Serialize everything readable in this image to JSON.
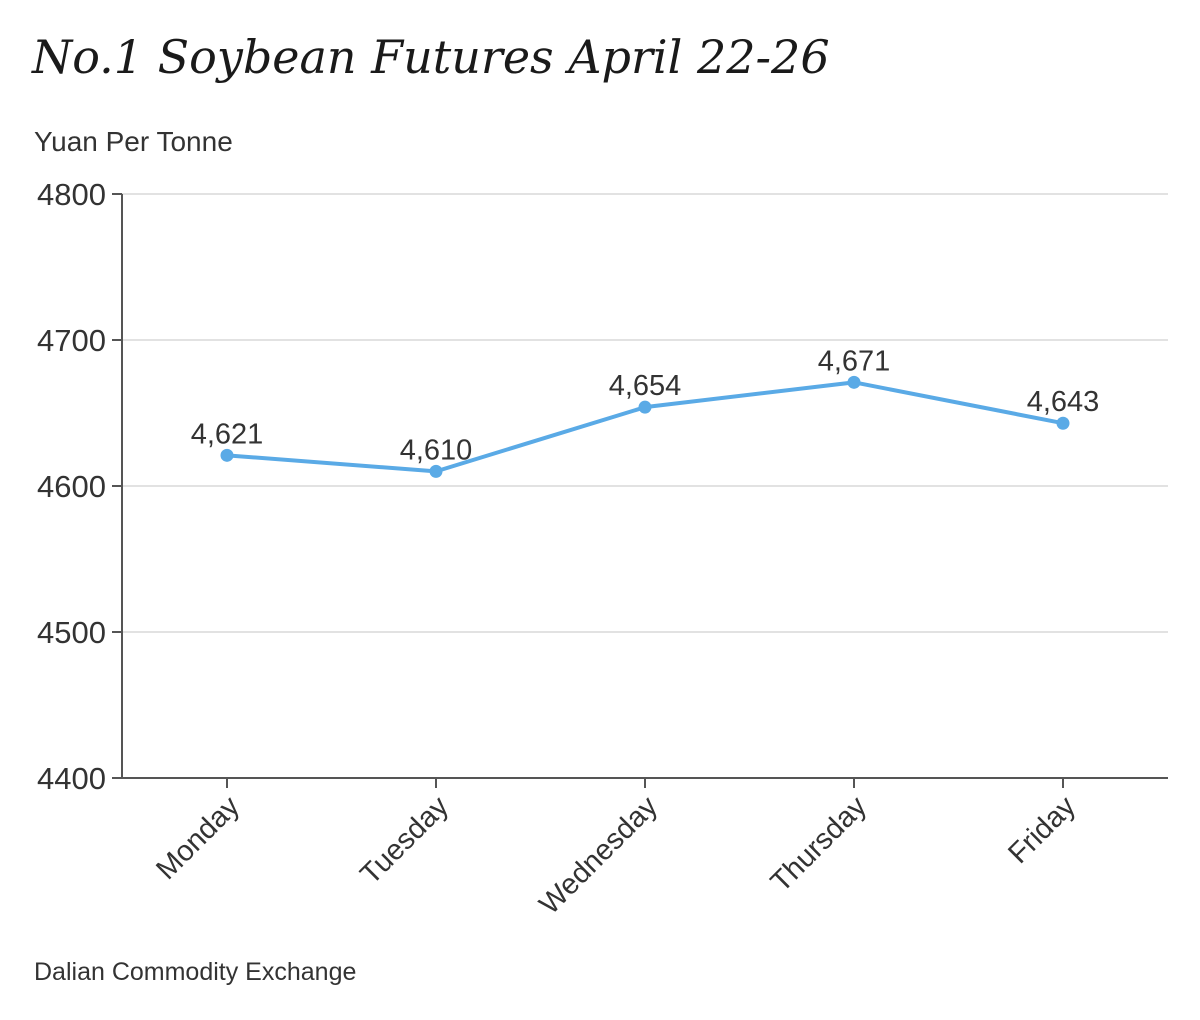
{
  "header": {
    "title": "No.1 Soybean Futures April 22-26",
    "unit": "Yuan Per Tonne"
  },
  "footer": {
    "source": "Dalian Commodity Exchange"
  },
  "chart_data": {
    "type": "line",
    "categories": [
      "Monday",
      "Tuesday",
      "Wednesday",
      "Thursday",
      "Friday"
    ],
    "series": [
      {
        "values": [
          4621,
          4610,
          4654,
          4671,
          4643
        ]
      }
    ],
    "data_labels": [
      "4,621",
      "4,610",
      "4,654",
      "4,671",
      "4,643"
    ],
    "title": "No.1 Soybean Futures April 22-26",
    "xlabel": "",
    "ylabel": "Yuan Per Tonne",
    "ylim": [
      4400,
      4800
    ],
    "yticks": [
      4400,
      4500,
      4600,
      4700,
      4800
    ],
    "grid": true,
    "colors": {
      "line": "#5aaae6",
      "grid": "#d9d9d9",
      "axis": "#555555"
    }
  }
}
